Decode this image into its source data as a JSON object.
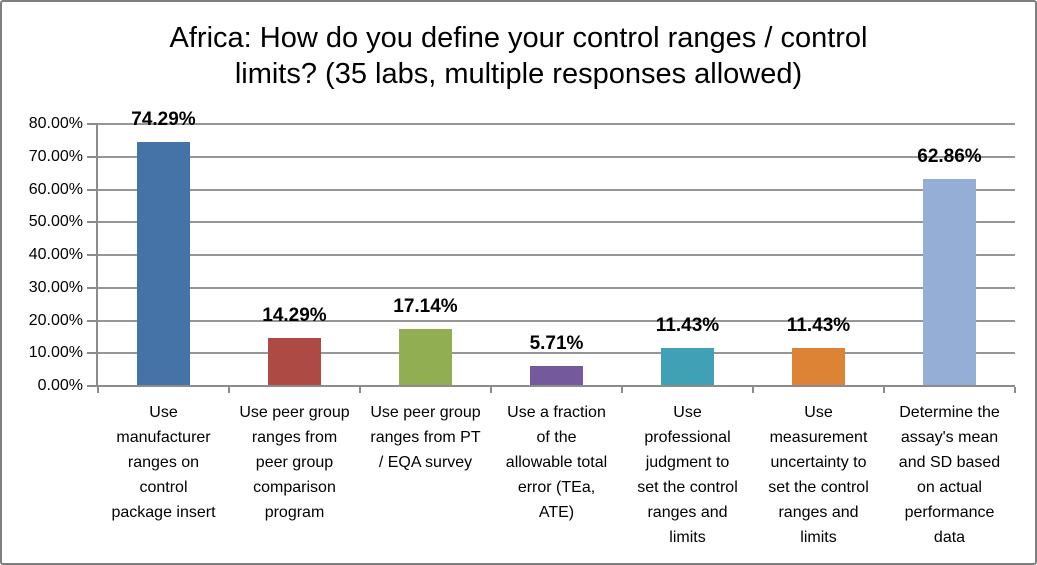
{
  "chart_data": {
    "type": "bar",
    "title": "Africa: How do you define your control ranges / control\nlimits? (35 labs, multiple responses allowed)",
    "categories": [
      "Use\nmanufacturer\nranges on\ncontrol\npackage insert",
      "Use peer group\nranges from\npeer group\ncomparison\nprogram",
      "Use peer group\nranges from PT\n/ EQA survey",
      "Use a fraction\nof the\nallowable total\nerror (TEa,\nATE)",
      "Use\nprofessional\njudgment to\nset the control\nranges and\nlimits",
      "Use\nmeasurement\nuncertainty to\nset the control\nranges and\nlimits",
      "Determine the\nassay's mean\nand SD based\non actual\nperformance\ndata"
    ],
    "values": [
      74.29,
      14.29,
      17.14,
      5.71,
      11.43,
      11.43,
      62.86
    ],
    "value_labels": [
      "74.29%",
      "14.29%",
      "17.14%",
      "5.71%",
      "11.43%",
      "11.43%",
      "62.86%"
    ],
    "bar_colors": [
      "#4573a7",
      "#ae4a44",
      "#92ae52",
      "#74599c",
      "#3fa0b6",
      "#dd8336",
      "#95aed6"
    ],
    "xlabel": "",
    "ylabel": "",
    "ylim": [
      0,
      80
    ],
    "ytick_labels": [
      "0.00%",
      "10.00%",
      "20.00%",
      "30.00%",
      "40.00%",
      "50.00%",
      "60.00%",
      "70.00%",
      "80.00%"
    ],
    "grid": true,
    "legend_position": "none"
  },
  "colors": {
    "gridline": "#969696",
    "axis": "#8c8c8c",
    "frame_border": "#7f7f7f",
    "text": "#000000"
  }
}
